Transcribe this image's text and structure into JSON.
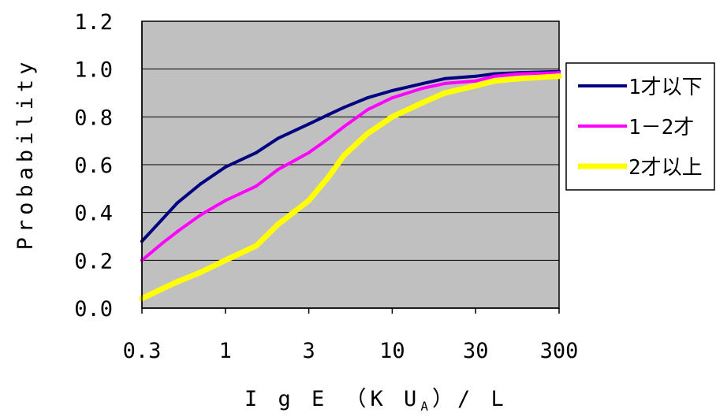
{
  "chart_data": {
    "type": "line",
    "title": "",
    "xlabel": "IgE（KUₐ）/L",
    "xlabel_parts": {
      "main": "I g E （K U",
      "sub": "A",
      "tail": "）/ L"
    },
    "ylabel": "Probability",
    "ylim": [
      0.0,
      1.2
    ],
    "yticks": [
      "0.0",
      "0.2",
      "0.4",
      "0.6",
      "0.8",
      "1.0",
      "1.2"
    ],
    "xticks": [
      "0.3",
      "1",
      "3",
      "10",
      "30",
      "300"
    ],
    "grid": "horizontal",
    "plot_background": "#c0c0c0",
    "legend_position": "right",
    "x": [
      0.3,
      0.4,
      0.5,
      0.7,
      1,
      1.5,
      2,
      3,
      4,
      5,
      7,
      10,
      15,
      20,
      30,
      50,
      100,
      300
    ],
    "series": [
      {
        "name": "1才以下",
        "color": "#000080",
        "values": [
          0.28,
          0.37,
          0.44,
          0.52,
          0.59,
          0.65,
          0.71,
          0.77,
          0.81,
          0.84,
          0.88,
          0.91,
          0.94,
          0.96,
          0.97,
          0.98,
          0.985,
          0.99
        ]
      },
      {
        "name": "1－2才",
        "color": "#ff00ff",
        "values": [
          0.2,
          0.27,
          0.32,
          0.39,
          0.45,
          0.51,
          0.58,
          0.65,
          0.71,
          0.76,
          0.83,
          0.88,
          0.92,
          0.94,
          0.95,
          0.97,
          0.98,
          0.985
        ]
      },
      {
        "name": "2才以上",
        "color": "#ffff00",
        "values": [
          0.04,
          0.08,
          0.11,
          0.15,
          0.2,
          0.26,
          0.35,
          0.45,
          0.55,
          0.64,
          0.73,
          0.8,
          0.86,
          0.9,
          0.93,
          0.95,
          0.96,
          0.97
        ]
      }
    ]
  }
}
